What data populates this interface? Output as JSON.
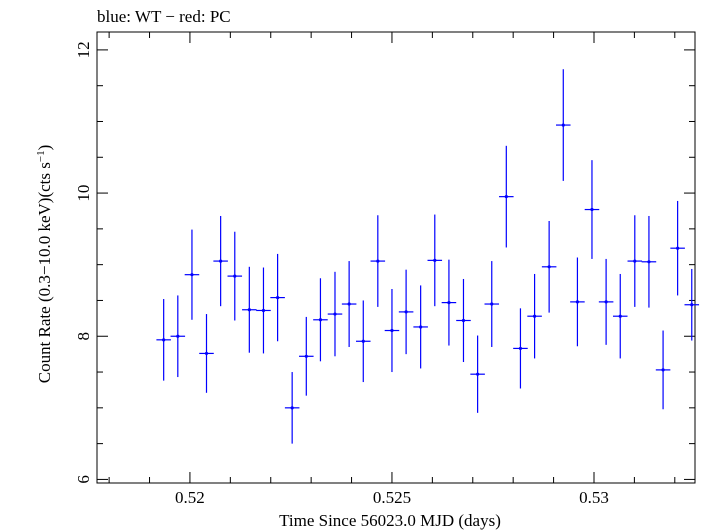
{
  "chart_data": {
    "type": "scatter",
    "title": "blue: WT − red: PC",
    "xlabel": "Time Since 56023.0 MJD (days)",
    "ylabel_main": "Count Rate (0.3−10.0 keV)(cts s",
    "ylabel_sup": "−1",
    "ylabel_close": ")",
    "xlim": [
      0.5177,
      0.5325
    ],
    "ylim": [
      5.95,
      12.25
    ],
    "x_major_ticks": [
      0.52,
      0.525,
      0.53
    ],
    "x_major_tick_labels": [
      "0.52",
      "0.525",
      "0.53"
    ],
    "x_minor_ticks": [
      0.518,
      0.519,
      0.521,
      0.522,
      0.523,
      0.524,
      0.526,
      0.527,
      0.528,
      0.529,
      0.531,
      0.532
    ],
    "y_major_ticks": [
      6,
      8,
      10,
      12
    ],
    "y_major_tick_labels": [
      "6",
      "8",
      "10",
      "12"
    ],
    "y_minor_ticks": [
      6.5,
      7,
      7.5,
      8.5,
      9,
      9.5,
      10.5,
      11,
      11.5
    ],
    "grid": false,
    "legend": "none",
    "series": [
      {
        "color": "#0000ff",
        "x_halfwidth": 0.00018,
        "points": [
          {
            "x": 0.51935,
            "y": 7.95,
            "yerr": 0.57
          },
          {
            "x": 0.5197,
            "y": 8.0,
            "yerr": 0.57
          },
          {
            "x": 0.52005,
            "y": 8.86,
            "yerr": 0.63
          },
          {
            "x": 0.52041,
            "y": 7.76,
            "yerr": 0.55
          },
          {
            "x": 0.52076,
            "y": 9.05,
            "yerr": 0.63
          },
          {
            "x": 0.52111,
            "y": 8.84,
            "yerr": 0.62
          },
          {
            "x": 0.52147,
            "y": 8.37,
            "yerr": 0.6
          },
          {
            "x": 0.52182,
            "y": 8.36,
            "yerr": 0.6
          },
          {
            "x": 0.52217,
            "y": 8.54,
            "yerr": 0.61
          },
          {
            "x": 0.52253,
            "y": 7.0,
            "yerr": 0.5
          },
          {
            "x": 0.52288,
            "y": 7.72,
            "yerr": 0.55
          },
          {
            "x": 0.52323,
            "y": 8.23,
            "yerr": 0.58
          },
          {
            "x": 0.52359,
            "y": 8.31,
            "yerr": 0.59
          },
          {
            "x": 0.52394,
            "y": 8.45,
            "yerr": 0.6
          },
          {
            "x": 0.52429,
            "y": 7.93,
            "yerr": 0.57
          },
          {
            "x": 0.52465,
            "y": 9.05,
            "yerr": 0.64
          },
          {
            "x": 0.525,
            "y": 8.08,
            "yerr": 0.58
          },
          {
            "x": 0.52535,
            "y": 8.34,
            "yerr": 0.59
          },
          {
            "x": 0.52571,
            "y": 8.13,
            "yerr": 0.58
          },
          {
            "x": 0.52606,
            "y": 9.06,
            "yerr": 0.64
          },
          {
            "x": 0.52641,
            "y": 8.47,
            "yerr": 0.6
          },
          {
            "x": 0.52677,
            "y": 8.22,
            "yerr": 0.58
          },
          {
            "x": 0.52712,
            "y": 7.47,
            "yerr": 0.54
          },
          {
            "x": 0.52747,
            "y": 8.45,
            "yerr": 0.6
          },
          {
            "x": 0.52783,
            "y": 9.95,
            "yerr": 0.71
          },
          {
            "x": 0.52818,
            "y": 7.83,
            "yerr": 0.56
          },
          {
            "x": 0.52853,
            "y": 8.28,
            "yerr": 0.59
          },
          {
            "x": 0.52889,
            "y": 8.97,
            "yerr": 0.64
          },
          {
            "x": 0.52924,
            "y": 10.95,
            "yerr": 0.78
          },
          {
            "x": 0.52959,
            "y": 8.48,
            "yerr": 0.62
          },
          {
            "x": 0.52995,
            "y": 9.77,
            "yerr": 0.69
          },
          {
            "x": 0.5303,
            "y": 8.48,
            "yerr": 0.6
          },
          {
            "x": 0.53065,
            "y": 8.28,
            "yerr": 0.59
          },
          {
            "x": 0.53101,
            "y": 9.05,
            "yerr": 0.64
          },
          {
            "x": 0.53136,
            "y": 9.04,
            "yerr": 0.64
          },
          {
            "x": 0.53171,
            "y": 7.53,
            "yerr": 0.55
          },
          {
            "x": 0.53207,
            "y": 9.23,
            "yerr": 0.66
          },
          {
            "x": 0.53242,
            "y": 8.44,
            "yerr": 0.5
          }
        ]
      }
    ]
  }
}
